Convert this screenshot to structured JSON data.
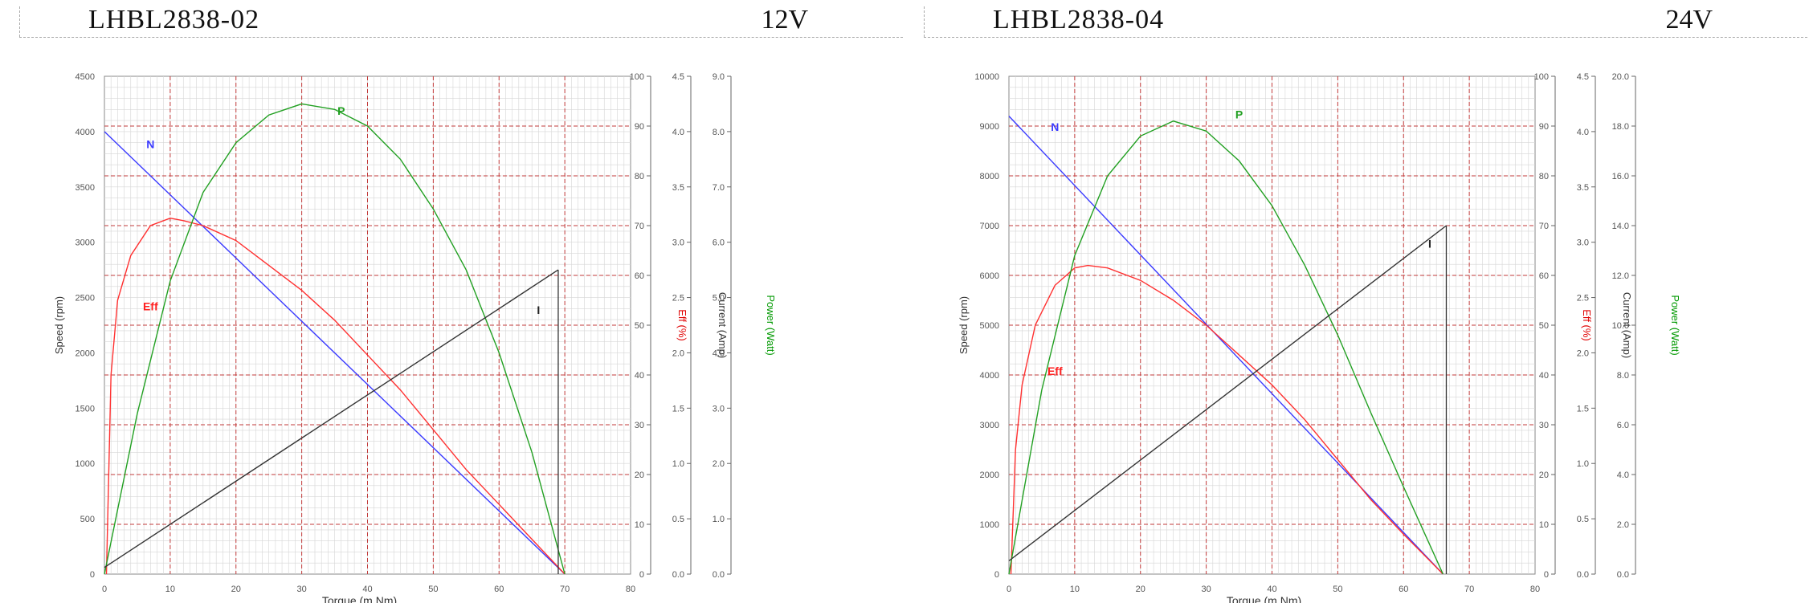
{
  "chart_data": [
    {
      "type": "line",
      "model": "LHBL2838-02",
      "voltage": "12V",
      "xlabel": "Torque (m.Nm)",
      "xlim": [
        0,
        80
      ],
      "x_ticks": [
        "0",
        "10",
        "20",
        "30",
        "40",
        "50",
        "60",
        "70",
        "80"
      ],
      "axes": [
        {
          "id": "speed",
          "label": "Speed (rpm)",
          "range": [
            0,
            4500
          ],
          "ticks": [
            "0",
            "500",
            "1000",
            "1500",
            "2000",
            "2500",
            "3000",
            "3500",
            "4000",
            "4500"
          ],
          "color": "#333333"
        },
        {
          "id": "eff",
          "label": "Eff (%)",
          "range": [
            0,
            100
          ],
          "ticks": [
            "0",
            "10",
            "20",
            "30",
            "40",
            "50",
            "60",
            "70",
            "80",
            "90",
            "100"
          ],
          "color": "#e00000"
        },
        {
          "id": "current",
          "label": "Current (Amp)",
          "range": [
            0,
            4.5
          ],
          "ticks": [
            "0.0",
            "0.5",
            "1.0",
            "1.5",
            "2.0",
            "2.5",
            "3.0",
            "3.5",
            "4.0",
            "4.5"
          ],
          "color": "#333333"
        },
        {
          "id": "power",
          "label": "Power (Watt)",
          "range": [
            0,
            9
          ],
          "ticks": [
            "0.0",
            "1.0",
            "2.0",
            "3.0",
            "4.0",
            "5.0",
            "6.0",
            "7.0",
            "8.0",
            "9.0"
          ],
          "color": "#009900"
        }
      ],
      "series": [
        {
          "name": "N",
          "axis": "speed",
          "color": "#3b3bff",
          "x": [
            0,
            70
          ],
          "y": [
            4000,
            0
          ]
        },
        {
          "name": "Eff",
          "axis": "eff",
          "color": "#ff3030",
          "x": [
            0.3,
            1,
            2,
            4,
            7,
            10,
            12,
            15,
            20,
            25,
            30,
            35,
            40,
            45,
            50,
            55,
            60,
            65,
            70
          ],
          "y": [
            0,
            40,
            55,
            64,
            70,
            71.5,
            71,
            70,
            67,
            62,
            57,
            51,
            44,
            37,
            29,
            21,
            14,
            7,
            0
          ]
        },
        {
          "name": "P",
          "axis": "power",
          "color": "#22a022",
          "x": [
            0,
            5,
            10,
            15,
            20,
            25,
            30,
            35,
            40,
            45,
            50,
            55,
            60,
            65,
            70
          ],
          "y": [
            0,
            2.9,
            5.3,
            6.9,
            7.8,
            8.3,
            8.5,
            8.4,
            8.1,
            7.5,
            6.6,
            5.5,
            4.0,
            2.2,
            0
          ]
        },
        {
          "name": "I",
          "axis": "current",
          "color": "#333333",
          "x": [
            0,
            69
          ],
          "y": [
            0.06,
            2.75
          ]
        }
      ],
      "drop_line": {
        "x": 69,
        "y_top": 2.75
      },
      "annotations": [
        {
          "text": "N",
          "x": 7,
          "axis": "speed",
          "y": 3850,
          "color": "#3b3bff"
        },
        {
          "text": "P",
          "x": 36,
          "axis": "power",
          "y": 8.3,
          "color": "#22a022"
        },
        {
          "text": "Eff",
          "x": 7,
          "axis": "eff",
          "y": 53,
          "color": "#ff2020"
        },
        {
          "text": "I",
          "x": 66,
          "axis": "current",
          "y": 2.35,
          "color": "#222222"
        }
      ]
    },
    {
      "type": "line",
      "model": "LHBL2838-04",
      "voltage": "24V",
      "xlabel": "Torque (m.Nm)",
      "xlim": [
        0,
        80
      ],
      "x_ticks": [
        "0",
        "10",
        "20",
        "30",
        "40",
        "50",
        "60",
        "70",
        "80"
      ],
      "axes": [
        {
          "id": "speed",
          "label": "Speed (rpm)",
          "range": [
            0,
            10000
          ],
          "ticks": [
            "0",
            "1000",
            "2000",
            "3000",
            "4000",
            "5000",
            "6000",
            "7000",
            "8000",
            "9000",
            "10000"
          ],
          "color": "#333333"
        },
        {
          "id": "eff",
          "label": "Eff (%)",
          "range": [
            0,
            100
          ],
          "ticks": [
            "0",
            "10",
            "20",
            "30",
            "40",
            "50",
            "60",
            "70",
            "80",
            "90",
            "100"
          ],
          "color": "#e00000"
        },
        {
          "id": "current",
          "label": "Current (Amp)",
          "range": [
            0,
            4.5
          ],
          "ticks": [
            "0.0",
            "0.5",
            "1.0",
            "1.5",
            "2.0",
            "2.5",
            "3.0",
            "3.5",
            "4.0",
            "4.5"
          ],
          "color": "#333333"
        },
        {
          "id": "power",
          "label": "Power (Watt)",
          "range": [
            0,
            20
          ],
          "ticks": [
            "0.0",
            "2.0",
            "4.0",
            "6.0",
            "8.0",
            "10.0",
            "12.0",
            "14.0",
            "16.0",
            "18.0",
            "20.0"
          ],
          "color": "#009900"
        }
      ],
      "series": [
        {
          "name": "N",
          "axis": "speed",
          "color": "#3b3bff",
          "x": [
            0,
            66
          ],
          "y": [
            9200,
            0
          ]
        },
        {
          "name": "Eff",
          "axis": "eff",
          "color": "#ff3030",
          "x": [
            0.3,
            1,
            2,
            4,
            7,
            10,
            12,
            15,
            20,
            25,
            30,
            35,
            40,
            45,
            50,
            55,
            60,
            66
          ],
          "y": [
            0,
            25,
            38,
            50,
            58,
            61.5,
            62,
            61.5,
            59,
            55,
            50,
            44,
            38,
            31,
            23,
            15,
            8,
            0
          ]
        },
        {
          "name": "P",
          "axis": "power",
          "color": "#22a022",
          "x": [
            0,
            5,
            10,
            15,
            20,
            25,
            30,
            35,
            40,
            45,
            50,
            55,
            60,
            66
          ],
          "y": [
            0,
            7.4,
            12.8,
            16.0,
            17.6,
            18.2,
            17.8,
            16.6,
            14.8,
            12.4,
            9.6,
            6.5,
            3.5,
            0
          ]
        },
        {
          "name": "I",
          "axis": "current",
          "color": "#333333",
          "x": [
            0,
            66.5
          ],
          "y": [
            0.12,
            3.15
          ]
        }
      ],
      "drop_line": {
        "x": 66.5,
        "y_top": 3.15
      },
      "annotations": [
        {
          "text": "N",
          "x": 7,
          "axis": "speed",
          "y": 8900,
          "color": "#3b3bff"
        },
        {
          "text": "P",
          "x": 35,
          "axis": "power",
          "y": 18.3,
          "color": "#22a022"
        },
        {
          "text": "Eff",
          "x": 7,
          "axis": "eff",
          "y": 40,
          "color": "#ff2020"
        },
        {
          "text": "I",
          "x": 64,
          "axis": "current",
          "y": 2.95,
          "color": "#222222"
        }
      ]
    }
  ]
}
